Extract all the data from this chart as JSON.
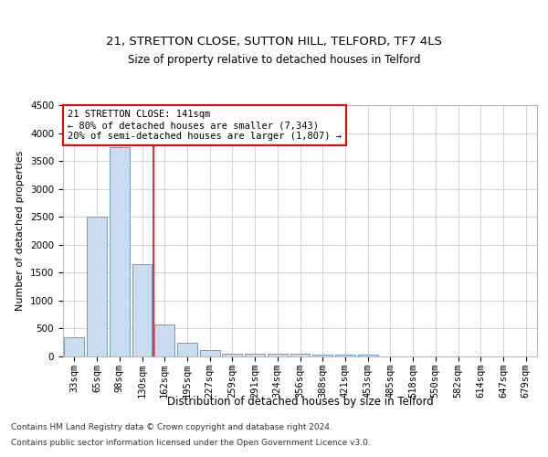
{
  "title1": "21, STRETTON CLOSE, SUTTON HILL, TELFORD, TF7 4LS",
  "title2": "Size of property relative to detached houses in Telford",
  "xlabel": "Distribution of detached houses by size in Telford",
  "ylabel": "Number of detached properties",
  "categories": [
    "33sqm",
    "65sqm",
    "98sqm",
    "130sqm",
    "162sqm",
    "195sqm",
    "227sqm",
    "259sqm",
    "291sqm",
    "324sqm",
    "356sqm",
    "388sqm",
    "421sqm",
    "453sqm",
    "485sqm",
    "518sqm",
    "550sqm",
    "582sqm",
    "614sqm",
    "647sqm",
    "679sqm"
  ],
  "values": [
    350,
    2500,
    3750,
    1650,
    580,
    240,
    110,
    55,
    50,
    45,
    45,
    40,
    35,
    30,
    0,
    0,
    0,
    0,
    0,
    0,
    0
  ],
  "bar_color": "#c9dcf0",
  "bar_edge_color": "#5a8fc0",
  "red_line_x": 3.5,
  "annotation_line1": "21 STRETTON CLOSE: 141sqm",
  "annotation_line2": "← 80% of detached houses are smaller (7,343)",
  "annotation_line3": "20% of semi-detached houses are larger (1,807) →",
  "footnote1": "Contains HM Land Registry data © Crown copyright and database right 2024.",
  "footnote2": "Contains public sector information licensed under the Open Government Licence v3.0.",
  "ylim": [
    0,
    4500
  ],
  "yticks": [
    0,
    500,
    1000,
    1500,
    2000,
    2500,
    3000,
    3500,
    4000,
    4500
  ],
  "background_color": "#ffffff",
  "grid_color": "#cccccc",
  "title1_fontsize": 9.5,
  "title2_fontsize": 8.5,
  "annotation_fontsize": 7.5,
  "tick_fontsize": 7.5,
  "xlabel_fontsize": 8.5,
  "ylabel_fontsize": 8.0,
  "footnote_fontsize": 6.5
}
